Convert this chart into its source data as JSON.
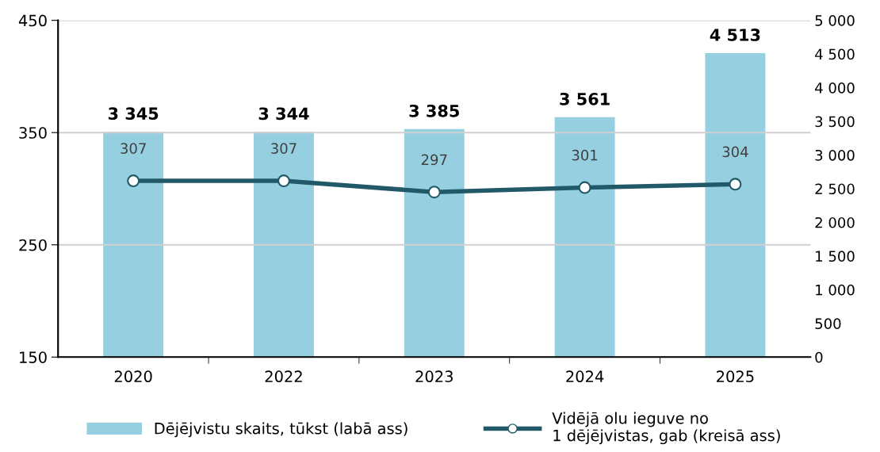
{
  "chart_data": {
    "type": "bar",
    "categories": [
      "2020",
      "2022",
      "2023",
      "2024",
      "2025"
    ],
    "series": [
      {
        "name": "Dējējvistu skaits, tūkst (labā ass)",
        "axis": "y2",
        "color": "#96cfdf",
        "values": [
          3345,
          3344,
          3385,
          3561,
          4513
        ],
        "value_labels": [
          "3 345",
          "3 344",
          "3 385",
          "3 561",
          "4 513"
        ]
      },
      {
        "name": "Vidējā olu ieguve no\n1 dējējvistas, gab (kreisā ass)",
        "type": "line",
        "axis": "y",
        "color": "#215968",
        "values": [
          307,
          307,
          297,
          301,
          304
        ],
        "value_labels": [
          "307",
          "307",
          "297",
          "301",
          "304"
        ]
      }
    ],
    "ylim": [
      150,
      450
    ],
    "yticks": [
      150,
      250,
      350,
      450
    ],
    "y2lim": [
      0,
      5000
    ],
    "y2ticks": [
      0,
      500,
      {
        "value": 1000,
        "label": "1 000"
      },
      {
        "value": 1500,
        "label": "1 500"
      },
      {
        "value": 2000,
        "label": "2 000"
      },
      {
        "value": 2500,
        "label": "2 500"
      },
      {
        "value": 3000,
        "label": "3 000"
      },
      {
        "value": 3500,
        "label": "3 500"
      },
      {
        "value": 4000,
        "label": "4 000"
      },
      {
        "value": 4500,
        "label": "4 500"
      },
      {
        "value": 5000,
        "label": "5 000"
      }
    ],
    "grid": "y",
    "legend": "bottom",
    "marker": "circle",
    "line_style": "solid"
  }
}
